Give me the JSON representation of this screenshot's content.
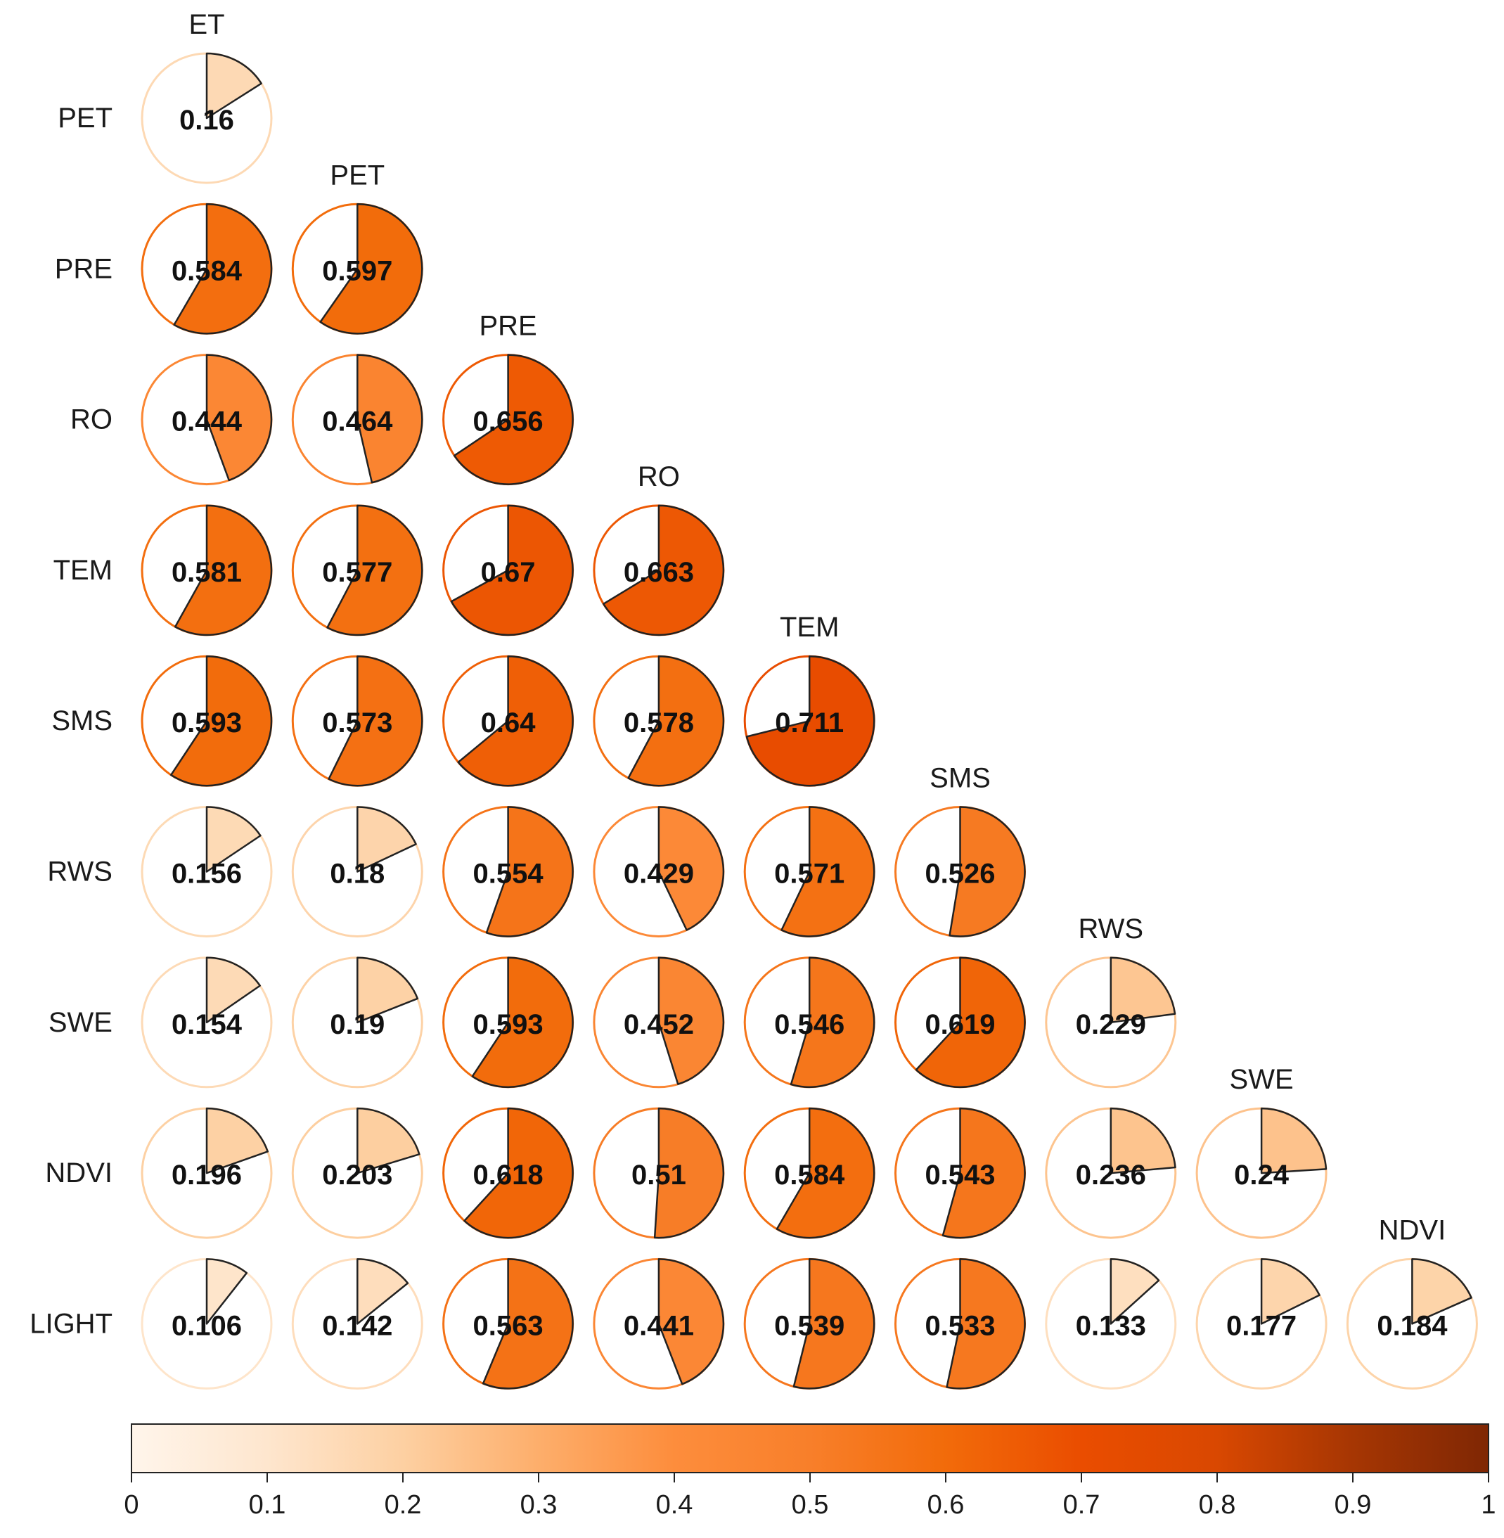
{
  "chart_data": {
    "type": "correlation-pie-matrix",
    "variables": [
      "ET",
      "PET",
      "PRE",
      "RO",
      "TEM",
      "SMS",
      "RWS",
      "SWE",
      "NDVI",
      "LIGHT"
    ],
    "row_labels": [
      "PET",
      "PRE",
      "RO",
      "TEM",
      "SMS",
      "RWS",
      "SWE",
      "NDVI",
      "LIGHT"
    ],
    "col_labels": [
      "ET",
      "PET",
      "PRE",
      "RO",
      "TEM",
      "SMS",
      "RWS",
      "SWE",
      "NDVI"
    ],
    "matrix": [
      [
        0.16
      ],
      [
        0.584,
        0.597
      ],
      [
        0.444,
        0.464,
        0.656
      ],
      [
        0.581,
        0.577,
        0.67,
        0.663
      ],
      [
        0.593,
        0.573,
        0.64,
        0.578,
        0.711
      ],
      [
        0.156,
        0.18,
        0.554,
        0.429,
        0.571,
        0.526
      ],
      [
        0.154,
        0.19,
        0.593,
        0.452,
        0.546,
        0.619,
        0.229
      ],
      [
        0.196,
        0.203,
        0.618,
        0.51,
        0.584,
        0.543,
        0.236,
        0.24
      ],
      [
        0.106,
        0.142,
        0.563,
        0.441,
        0.539,
        0.533,
        0.133,
        0.177,
        0.184
      ]
    ],
    "colorbar": {
      "range": [
        0,
        1
      ],
      "ticks": [
        "0",
        "0.1",
        "0.2",
        "0.3",
        "0.4",
        "0.5",
        "0.6",
        "0.7",
        "0.8",
        "0.9",
        "1"
      ],
      "colors": [
        "#fff5eb",
        "#fee6ce",
        "#fdd0a2",
        "#fdae6b",
        "#fd8d3c",
        "#f87f2a",
        "#f26b0a",
        "#ea4d00",
        "#d94801",
        "#a63603",
        "#7f2704"
      ]
    }
  }
}
